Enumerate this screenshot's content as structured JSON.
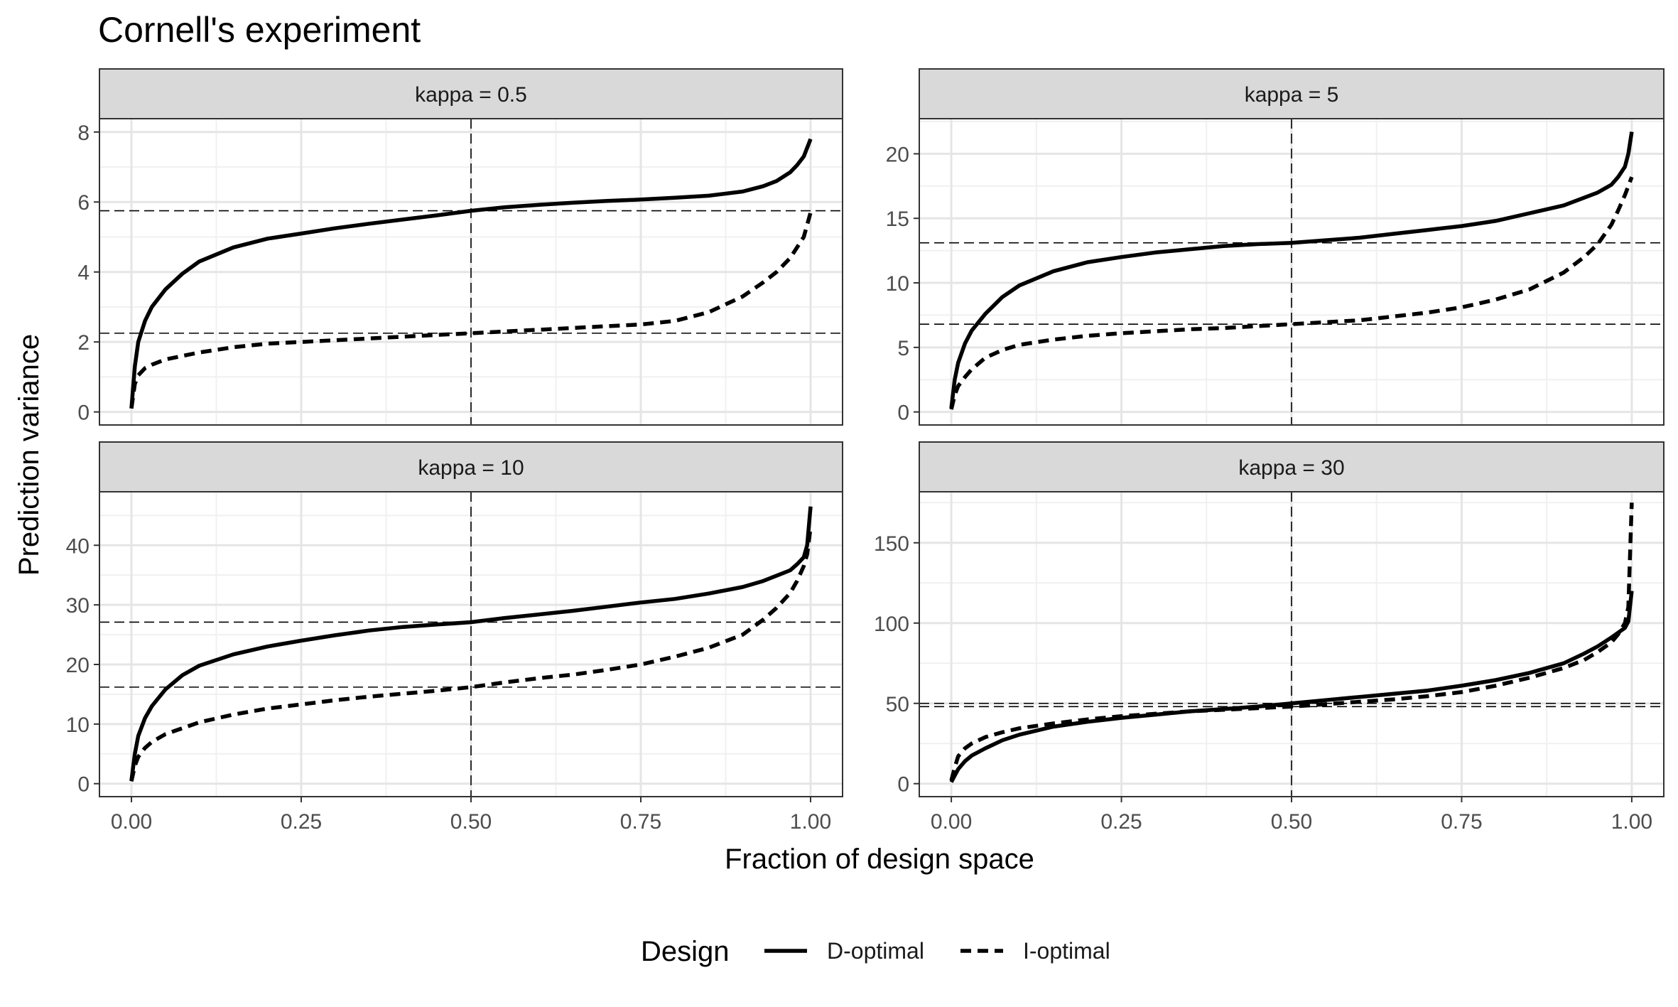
{
  "title": "Cornell's experiment",
  "xlabel": "Fraction of design space",
  "ylabel": "Prediction variance",
  "legend": {
    "title": "Design",
    "position": "bottom",
    "entries": [
      {
        "label": "D-optimal",
        "linetype": "solid"
      },
      {
        "label": "I-optimal",
        "linetype": "dashed"
      }
    ]
  },
  "chart_data": [
    {
      "type": "line",
      "panel": "kappa = 0.5",
      "xlim": [
        0,
        1
      ],
      "ylim": [
        0,
        8
      ],
      "x_ticks": [
        "0.00",
        "0.25",
        "0.50",
        "0.75",
        "1.00"
      ],
      "y_ticks": [
        0,
        2,
        4,
        6,
        8
      ],
      "vline": 0.5,
      "hlines": [
        5.75,
        2.25
      ],
      "grid": true,
      "series": [
        {
          "name": "D-optimal",
          "linetype": "solid",
          "x": [
            0,
            0.005,
            0.01,
            0.02,
            0.03,
            0.05,
            0.075,
            0.1,
            0.15,
            0.2,
            0.25,
            0.3,
            0.35,
            0.4,
            0.45,
            0.5,
            0.55,
            0.6,
            0.65,
            0.7,
            0.75,
            0.8,
            0.85,
            0.9,
            0.93,
            0.95,
            0.97,
            0.98,
            0.99,
            1.0
          ],
          "y": [
            0.1,
            1.3,
            2.0,
            2.6,
            3.0,
            3.5,
            3.95,
            4.3,
            4.7,
            4.95,
            5.1,
            5.25,
            5.38,
            5.5,
            5.62,
            5.75,
            5.85,
            5.92,
            5.98,
            6.03,
            6.07,
            6.12,
            6.18,
            6.3,
            6.45,
            6.6,
            6.85,
            7.05,
            7.3,
            7.8
          ]
        },
        {
          "name": "I-optimal",
          "linetype": "dashed",
          "x": [
            0,
            0.005,
            0.01,
            0.02,
            0.03,
            0.05,
            0.075,
            0.1,
            0.15,
            0.2,
            0.25,
            0.3,
            0.35,
            0.4,
            0.45,
            0.5,
            0.55,
            0.6,
            0.65,
            0.7,
            0.75,
            0.8,
            0.85,
            0.9,
            0.93,
            0.95,
            0.97,
            0.98,
            0.99,
            1.0
          ],
          "y": [
            0.1,
            0.8,
            1.05,
            1.25,
            1.35,
            1.5,
            1.6,
            1.7,
            1.85,
            1.95,
            2.0,
            2.05,
            2.1,
            2.15,
            2.2,
            2.25,
            2.3,
            2.35,
            2.4,
            2.45,
            2.5,
            2.6,
            2.85,
            3.3,
            3.7,
            4.0,
            4.4,
            4.7,
            5.0,
            5.7
          ]
        }
      ]
    },
    {
      "type": "line",
      "panel": "kappa = 5",
      "xlim": [
        0,
        1
      ],
      "ylim": [
        0,
        20
      ],
      "x_ticks": [
        "0.00",
        "0.25",
        "0.50",
        "0.75",
        "1.00"
      ],
      "y_ticks": [
        0,
        5,
        10,
        15,
        20
      ],
      "vline": 0.5,
      "hlines": [
        13.1,
        6.8
      ],
      "grid": true,
      "series": [
        {
          "name": "D-optimal",
          "linetype": "solid",
          "x": [
            0,
            0.005,
            0.01,
            0.02,
            0.03,
            0.05,
            0.075,
            0.1,
            0.15,
            0.2,
            0.25,
            0.3,
            0.35,
            0.4,
            0.45,
            0.5,
            0.55,
            0.6,
            0.65,
            0.7,
            0.75,
            0.8,
            0.85,
            0.9,
            0.93,
            0.95,
            0.97,
            0.98,
            0.99,
            0.995,
            1.0
          ],
          "y": [
            0.3,
            2.5,
            3.8,
            5.3,
            6.3,
            7.6,
            8.9,
            9.8,
            10.9,
            11.6,
            12.0,
            12.35,
            12.6,
            12.85,
            13.0,
            13.1,
            13.3,
            13.5,
            13.8,
            14.1,
            14.4,
            14.8,
            15.4,
            16.0,
            16.6,
            17.0,
            17.6,
            18.2,
            19.0,
            20.0,
            21.7
          ]
        },
        {
          "name": "I-optimal",
          "linetype": "dashed",
          "x": [
            0,
            0.005,
            0.01,
            0.02,
            0.03,
            0.05,
            0.075,
            0.1,
            0.15,
            0.2,
            0.25,
            0.3,
            0.35,
            0.4,
            0.45,
            0.5,
            0.55,
            0.6,
            0.65,
            0.7,
            0.75,
            0.8,
            0.85,
            0.9,
            0.93,
            0.95,
            0.97,
            0.98,
            0.99,
            1.0
          ],
          "y": [
            0.2,
            1.3,
            2.0,
            2.7,
            3.3,
            4.2,
            4.8,
            5.2,
            5.6,
            5.9,
            6.1,
            6.25,
            6.4,
            6.5,
            6.65,
            6.8,
            6.95,
            7.1,
            7.4,
            7.7,
            8.1,
            8.7,
            9.5,
            10.8,
            12.0,
            13.0,
            14.5,
            15.6,
            16.8,
            18.2
          ]
        }
      ]
    },
    {
      "type": "line",
      "panel": "kappa = 10",
      "xlim": [
        0,
        1
      ],
      "ylim": [
        0,
        40
      ],
      "x_ticks": [
        "0.00",
        "0.25",
        "0.50",
        "0.75",
        "1.00"
      ],
      "y_ticks": [
        0,
        10,
        20,
        30,
        40
      ],
      "vline": 0.5,
      "hlines": [
        27.1,
        16.2
      ],
      "grid": true,
      "series": [
        {
          "name": "D-optimal",
          "linetype": "solid",
          "x": [
            0,
            0.005,
            0.01,
            0.02,
            0.03,
            0.05,
            0.075,
            0.1,
            0.15,
            0.2,
            0.25,
            0.3,
            0.35,
            0.4,
            0.45,
            0.5,
            0.55,
            0.6,
            0.65,
            0.7,
            0.75,
            0.8,
            0.85,
            0.9,
            0.93,
            0.95,
            0.97,
            0.98,
            0.99,
            0.995,
            1.0
          ],
          "y": [
            0.5,
            5.0,
            8.0,
            11.0,
            13.0,
            15.8,
            18.2,
            19.8,
            21.7,
            23.0,
            24.0,
            24.9,
            25.7,
            26.3,
            26.7,
            27.1,
            27.8,
            28.4,
            29.0,
            29.7,
            30.4,
            31.0,
            31.9,
            33.0,
            34.0,
            34.9,
            35.8,
            36.8,
            38.0,
            40.0,
            46.5
          ]
        },
        {
          "name": "I-optimal",
          "linetype": "dashed",
          "x": [
            0,
            0.005,
            0.01,
            0.02,
            0.03,
            0.05,
            0.075,
            0.1,
            0.15,
            0.2,
            0.25,
            0.3,
            0.35,
            0.4,
            0.45,
            0.5,
            0.55,
            0.6,
            0.65,
            0.7,
            0.75,
            0.8,
            0.85,
            0.9,
            0.93,
            0.95,
            0.97,
            0.98,
            0.99,
            0.995,
            1.0
          ],
          "y": [
            0.4,
            3.0,
            4.5,
            6.0,
            7.0,
            8.3,
            9.3,
            10.3,
            11.6,
            12.6,
            13.3,
            14.0,
            14.6,
            15.1,
            15.6,
            16.2,
            17.0,
            17.7,
            18.3,
            19.1,
            20.0,
            21.3,
            22.8,
            25.0,
            27.5,
            29.5,
            32.0,
            34.0,
            36.5,
            38.5,
            43.0
          ]
        }
      ]
    },
    {
      "type": "line",
      "panel": "kappa = 30",
      "xlim": [
        0,
        1
      ],
      "ylim": [
        0,
        150
      ],
      "x_ticks": [
        "0.00",
        "0.25",
        "0.50",
        "0.75",
        "1.00"
      ],
      "y_ticks": [
        0,
        50,
        100,
        150
      ],
      "vline": 0.5,
      "hlines": [
        50,
        48
      ],
      "grid": true,
      "series": [
        {
          "name": "D-optimal",
          "linetype": "solid",
          "x": [
            0,
            0.005,
            0.01,
            0.02,
            0.03,
            0.05,
            0.075,
            0.1,
            0.15,
            0.2,
            0.25,
            0.3,
            0.35,
            0.4,
            0.45,
            0.5,
            0.55,
            0.6,
            0.65,
            0.7,
            0.75,
            0.8,
            0.85,
            0.9,
            0.93,
            0.95,
            0.97,
            0.98,
            0.99,
            0.995,
            1.0
          ],
          "y": [
            1,
            5,
            9,
            14,
            17.5,
            22,
            27,
            30.5,
            35.5,
            38.5,
            41,
            43,
            45,
            46.5,
            48,
            50,
            52,
            54,
            56,
            58,
            61,
            64.5,
            69,
            75,
            81,
            85.5,
            91,
            94,
            97,
            101,
            120
          ]
        },
        {
          "name": "I-optimal",
          "linetype": "dashed",
          "x": [
            0,
            0.005,
            0.01,
            0.02,
            0.03,
            0.05,
            0.075,
            0.1,
            0.15,
            0.2,
            0.25,
            0.3,
            0.35,
            0.4,
            0.45,
            0.5,
            0.55,
            0.6,
            0.65,
            0.7,
            0.75,
            0.8,
            0.85,
            0.9,
            0.93,
            0.95,
            0.97,
            0.98,
            0.99,
            0.995,
            1.0
          ],
          "y": [
            2,
            10,
            17,
            22,
            25,
            29,
            32,
            34.5,
            37.5,
            40,
            42,
            43.5,
            45,
            46,
            47,
            48,
            49.5,
            51,
            52.5,
            54.5,
            57,
            61,
            66,
            72,
            77,
            82,
            88,
            93,
            100,
            110,
            175
          ]
        }
      ]
    }
  ]
}
